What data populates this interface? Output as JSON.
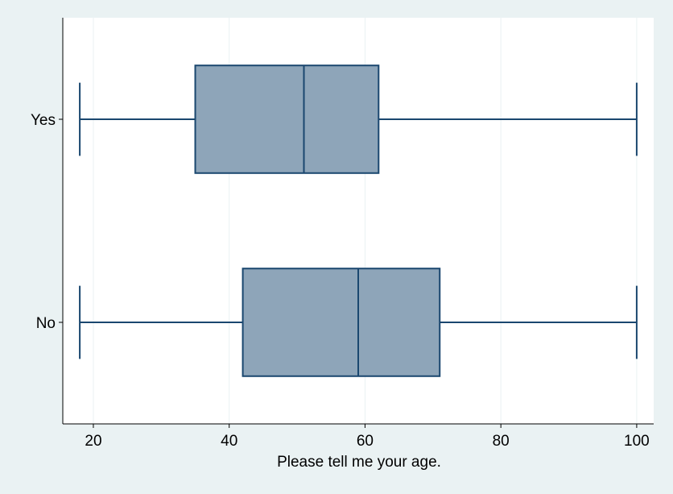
{
  "chart_data": {
    "type": "box",
    "orientation": "horizontal",
    "title": "",
    "xlabel": "Please tell me your age.",
    "ylabel": "",
    "xlim": [
      15.5,
      102.5
    ],
    "xticks": [
      20,
      40,
      60,
      80,
      100
    ],
    "categories": [
      "Yes",
      "No"
    ],
    "series": [
      {
        "values": [
          {
            "category": "Yes",
            "min": 18,
            "q1": 35,
            "median": 51,
            "q3": 62,
            "max": 100
          },
          {
            "category": "No",
            "min": 18,
            "q1": 42,
            "median": 59,
            "q3": 71,
            "max": 100
          }
        ]
      }
    ],
    "grid": {
      "x": true,
      "y": false
    },
    "legend": "none",
    "colors": {
      "background": "#eaf2f3",
      "plot_background": "#ffffff",
      "box_fill": "#8ea5b9",
      "box_stroke": "#1a476f",
      "grid": "#eaf2f3"
    }
  }
}
